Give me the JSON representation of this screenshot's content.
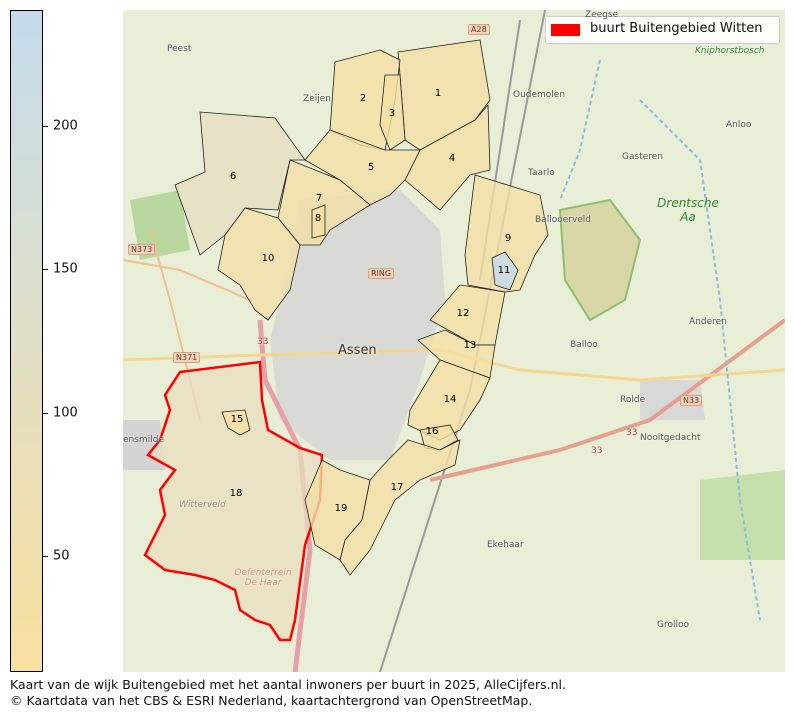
{
  "colorbar": {
    "range": [
      10,
      240
    ],
    "ticks": [
      "200",
      "150",
      "100",
      "50"
    ],
    "tick_values": [
      200,
      150,
      100,
      50
    ],
    "colors": {
      "low": "#f8e0a0",
      "high": "#c3dbeb"
    }
  },
  "legend": {
    "label": "buurt Buitengebied Witten",
    "color": "#ff0000"
  },
  "neighborhoods": [
    {
      "label": "1",
      "fill": "#f4dfa6"
    },
    {
      "label": "2",
      "fill": "#f5e0a4"
    },
    {
      "label": "3",
      "fill": "#f5e0a4"
    },
    {
      "label": "4",
      "fill": "#f4dfa6"
    },
    {
      "label": "5",
      "fill": "#f4dfa6"
    },
    {
      "label": "6",
      "fill": "#e6dfc0"
    },
    {
      "label": "7",
      "fill": "#f4dfa6"
    },
    {
      "label": "8",
      "fill": "#f5e0a4"
    },
    {
      "label": "9",
      "fill": "#f3dea6"
    },
    {
      "label": "10",
      "fill": "#f2dea8"
    },
    {
      "label": "11",
      "fill": "#c3dbeb"
    },
    {
      "label": "12",
      "fill": "#f5e0a4"
    },
    {
      "label": "13",
      "fill": "#f5e0a4"
    },
    {
      "label": "14",
      "fill": "#f3dea6"
    },
    {
      "label": "15",
      "fill": "#f5e0a4"
    },
    {
      "label": "16",
      "fill": "#f5e0a4"
    },
    {
      "label": "17",
      "fill": "#f4dfa6"
    },
    {
      "label": "18",
      "fill": "#e8ddbf"
    },
    {
      "label": "19",
      "fill": "#f3dea6"
    }
  ],
  "places": {
    "peest": "Peest",
    "zeijen": "Zeijen",
    "oudemolen": "Oudemolen",
    "anloo": "Anloo",
    "gasteren": "Gasteren",
    "taarlo": "Taarlo",
    "ballooerveld": "Ballooerveld",
    "anderen": "Anderen",
    "balloo": "Balloo",
    "assen": "Assen",
    "rolde": "Rolde",
    "nooitgedacht": "Nooitgedacht",
    "ekehaar": "Ekehaar",
    "grolloo": "Grolloo",
    "smilde": "ensmilde",
    "zeegse": "Zeegse",
    "kniphorstbosch": "Kniphorstbosch",
    "drentsche_aa": "Drentsche Aa",
    "witterveld": "Witterveld",
    "oefenterrein": "Oefenterrein De Haar"
  },
  "roads": {
    "a28": "A28",
    "n373": "N373",
    "n371": "N371",
    "n33": "N33",
    "ring": "RING",
    "r33a": "33",
    "r33b": "33",
    "r33c": "33"
  },
  "caption": {
    "line1": "Kaart van de wijk Buitengebied met het aantal inwoners per buurt in 2025, AlleCijfers.nl.",
    "line2": "© Kaartdata van het CBS & ESRI Nederland, kaartachtergrond van OpenStreetMap."
  }
}
